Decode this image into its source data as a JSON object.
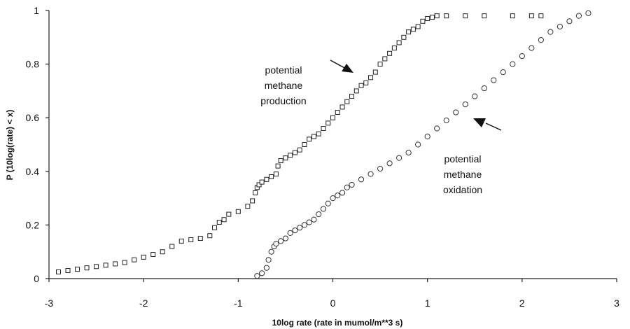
{
  "chart_data": {
    "type": "scatter",
    "title": "",
    "xlabel": "10log rate (rate in mumol/m**3 s)",
    "ylabel": "P (10log(rate) < x)",
    "xlim": [
      -3,
      3
    ],
    "ylim": [
      0,
      1
    ],
    "x_ticks": [
      "-3",
      "-2",
      "-1",
      "0",
      "1",
      "2",
      "3"
    ],
    "y_ticks": [
      "0",
      "0.2",
      "0.4",
      "0.6",
      "0.8",
      "1"
    ],
    "grid": false,
    "legend": "none",
    "series": [
      {
        "marker": "square",
        "x": [
          -2.9,
          -2.8,
          -2.7,
          -2.6,
          -2.5,
          -2.4,
          -2.3,
          -2.2,
          -2.1,
          -2.0,
          -1.9,
          -1.8,
          -1.7,
          -1.6,
          -1.5,
          -1.4,
          -1.3,
          -1.25,
          -1.2,
          -1.15,
          -1.1,
          -1.0,
          -0.9,
          -0.85,
          -0.82,
          -0.8,
          -0.78,
          -0.75,
          -0.7,
          -0.65,
          -0.6,
          -0.58,
          -0.55,
          -0.5,
          -0.45,
          -0.4,
          -0.35,
          -0.3,
          -0.25,
          -0.2,
          -0.15,
          -0.1,
          -0.05,
          0.0,
          0.05,
          0.1,
          0.15,
          0.2,
          0.25,
          0.3,
          0.35,
          0.4,
          0.45,
          0.5,
          0.55,
          0.6,
          0.65,
          0.7,
          0.75,
          0.8,
          0.85,
          0.9,
          0.95,
          1.0,
          1.05,
          1.1,
          1.2,
          1.4,
          1.6,
          1.9,
          2.1,
          2.2
        ],
        "y": [
          0.025,
          0.03,
          0.035,
          0.04,
          0.045,
          0.05,
          0.055,
          0.06,
          0.07,
          0.08,
          0.09,
          0.1,
          0.12,
          0.14,
          0.145,
          0.15,
          0.16,
          0.19,
          0.21,
          0.22,
          0.24,
          0.25,
          0.27,
          0.29,
          0.32,
          0.34,
          0.35,
          0.36,
          0.37,
          0.38,
          0.39,
          0.42,
          0.44,
          0.45,
          0.46,
          0.47,
          0.48,
          0.5,
          0.52,
          0.53,
          0.54,
          0.56,
          0.58,
          0.6,
          0.62,
          0.64,
          0.66,
          0.68,
          0.7,
          0.72,
          0.73,
          0.75,
          0.77,
          0.8,
          0.82,
          0.84,
          0.86,
          0.88,
          0.9,
          0.92,
          0.93,
          0.94,
          0.96,
          0.97,
          0.975,
          0.98,
          0.98,
          0.98,
          0.98,
          0.98,
          0.98,
          0.98
        ]
      },
      {
        "marker": "circle",
        "x": [
          -0.8,
          -0.75,
          -0.7,
          -0.68,
          -0.65,
          -0.62,
          -0.6,
          -0.55,
          -0.5,
          -0.45,
          -0.4,
          -0.35,
          -0.3,
          -0.25,
          -0.2,
          -0.15,
          -0.1,
          -0.05,
          0.0,
          0.05,
          0.1,
          0.15,
          0.2,
          0.3,
          0.4,
          0.5,
          0.6,
          0.7,
          0.8,
          0.9,
          1.0,
          1.1,
          1.2,
          1.3,
          1.4,
          1.5,
          1.6,
          1.7,
          1.8,
          1.9,
          2.0,
          2.1,
          2.2,
          2.3,
          2.4,
          2.5,
          2.6,
          2.7
        ],
        "y": [
          0.01,
          0.02,
          0.04,
          0.07,
          0.1,
          0.12,
          0.13,
          0.14,
          0.15,
          0.17,
          0.18,
          0.19,
          0.2,
          0.21,
          0.22,
          0.24,
          0.26,
          0.28,
          0.3,
          0.31,
          0.32,
          0.34,
          0.35,
          0.37,
          0.39,
          0.41,
          0.43,
          0.45,
          0.47,
          0.5,
          0.53,
          0.56,
          0.59,
          0.62,
          0.65,
          0.68,
          0.71,
          0.74,
          0.77,
          0.8,
          0.83,
          0.86,
          0.89,
          0.92,
          0.94,
          0.96,
          0.98,
          0.99
        ]
      }
    ],
    "annotations": [
      {
        "lines": [
          "potential",
          "methane",
          "production"
        ]
      },
      {
        "lines": [
          "potential",
          "methane",
          "oxidation"
        ]
      }
    ]
  }
}
